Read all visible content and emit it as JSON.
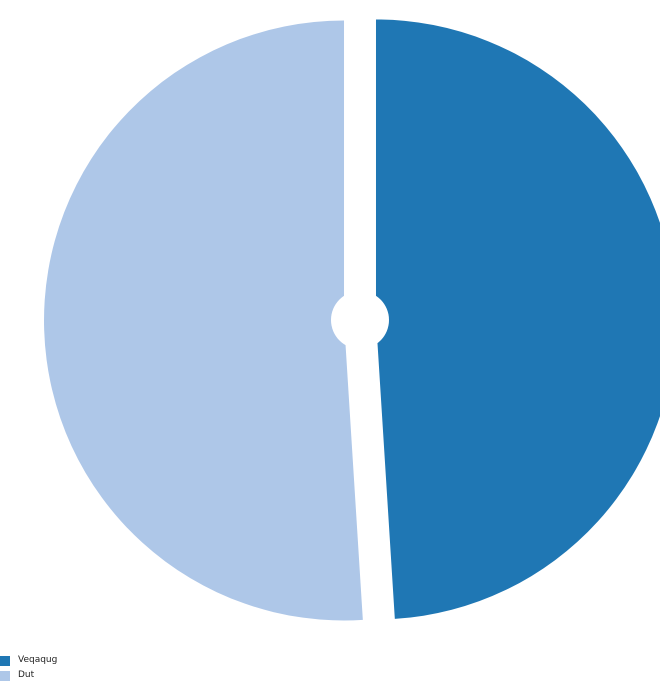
{
  "chart_data": {
    "type": "pie",
    "title": "",
    "slices": [
      {
        "name": "Veqaqug",
        "value": 49,
        "color": "#1f77b4"
      },
      {
        "name": "Dut",
        "value": 51,
        "color": "#aec7e8"
      }
    ],
    "legend_position": "bottom-left"
  }
}
